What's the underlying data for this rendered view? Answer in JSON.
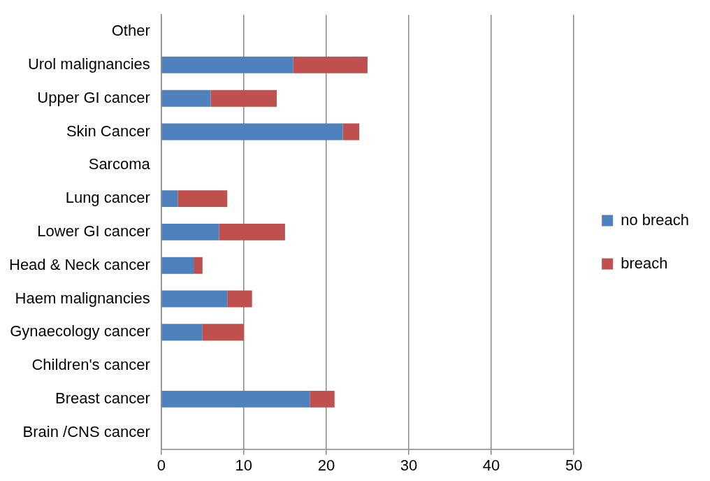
{
  "chart_data": {
    "type": "bar",
    "orientation": "horizontal",
    "stacked": true,
    "categories": [
      "Other",
      "Urol malignancies",
      "Upper GI cancer",
      "Skin Cancer",
      "Sarcoma",
      "Lung cancer",
      "Lower GI cancer",
      "Head & Neck cancer",
      "Haem malignancies",
      "Gynaecology cancer",
      "Children's cancer",
      "Breast cancer",
      "Brain /CNS cancer"
    ],
    "series": [
      {
        "name": "no breach",
        "color": "#4f81bd",
        "values": [
          0,
          16,
          6,
          22,
          0,
          2,
          7,
          4,
          8,
          5,
          0,
          18,
          0
        ]
      },
      {
        "name": "breach",
        "color": "#c0504d",
        "values": [
          0,
          9,
          8,
          2,
          0,
          6,
          8,
          1,
          3,
          5,
          0,
          3,
          0
        ]
      }
    ],
    "xlim": [
      0,
      50
    ],
    "xticks": [
      0,
      10,
      20,
      30,
      40,
      50
    ],
    "grid": "x",
    "legend": "right"
  }
}
